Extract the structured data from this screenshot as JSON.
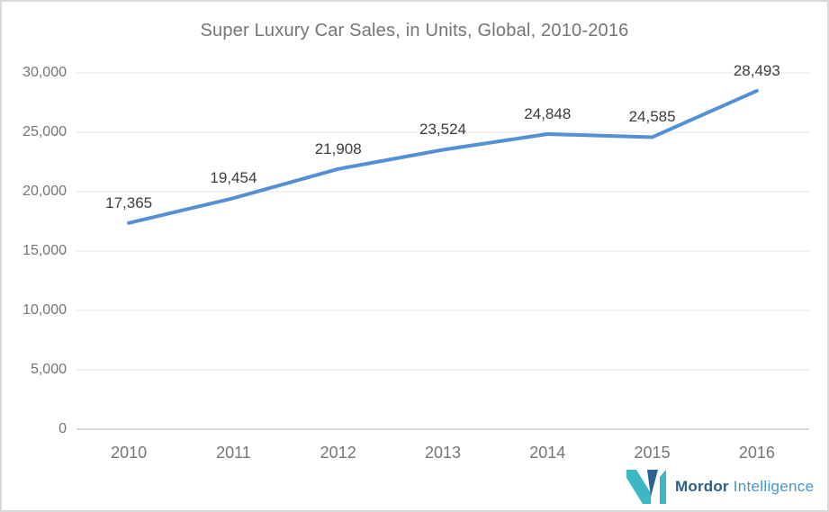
{
  "chart_data": {
    "type": "line",
    "title": "Super Luxury Car Sales, in Units, Global, 2010-2016",
    "categories": [
      "2010",
      "2011",
      "2012",
      "2013",
      "2014",
      "2015",
      "2016"
    ],
    "values": [
      17365,
      19454,
      21908,
      23524,
      24848,
      24585,
      28493
    ],
    "data_labels": [
      "17,365",
      "19,454",
      "21,908",
      "23,524",
      "24,848",
      "24,585",
      "28,493"
    ],
    "xlabel": "",
    "ylabel": "",
    "ylim": [
      0,
      30000
    ],
    "ytick_step": 5000,
    "ytick_labels": [
      "0",
      "5,000",
      "10,000",
      "15,000",
      "20,000",
      "25,000",
      "30,000"
    ],
    "grid": "horizontal-only",
    "legend": "none",
    "colors": {
      "line": "#5590d5",
      "gridline": "#e6e6e6",
      "zero_axis_line": "#b3b3b3",
      "title_text": "#757575",
      "axis_text": "#757575",
      "data_label_text": "#3c3c3c"
    }
  },
  "branding": {
    "brand_primary": "Mordor",
    "brand_secondary": "Intelligence",
    "colors": {
      "icon_teal": "#3db7c4",
      "icon_navy": "#2a6496",
      "text_dark": "#2d5f87",
      "text_light": "#4697cb"
    }
  }
}
